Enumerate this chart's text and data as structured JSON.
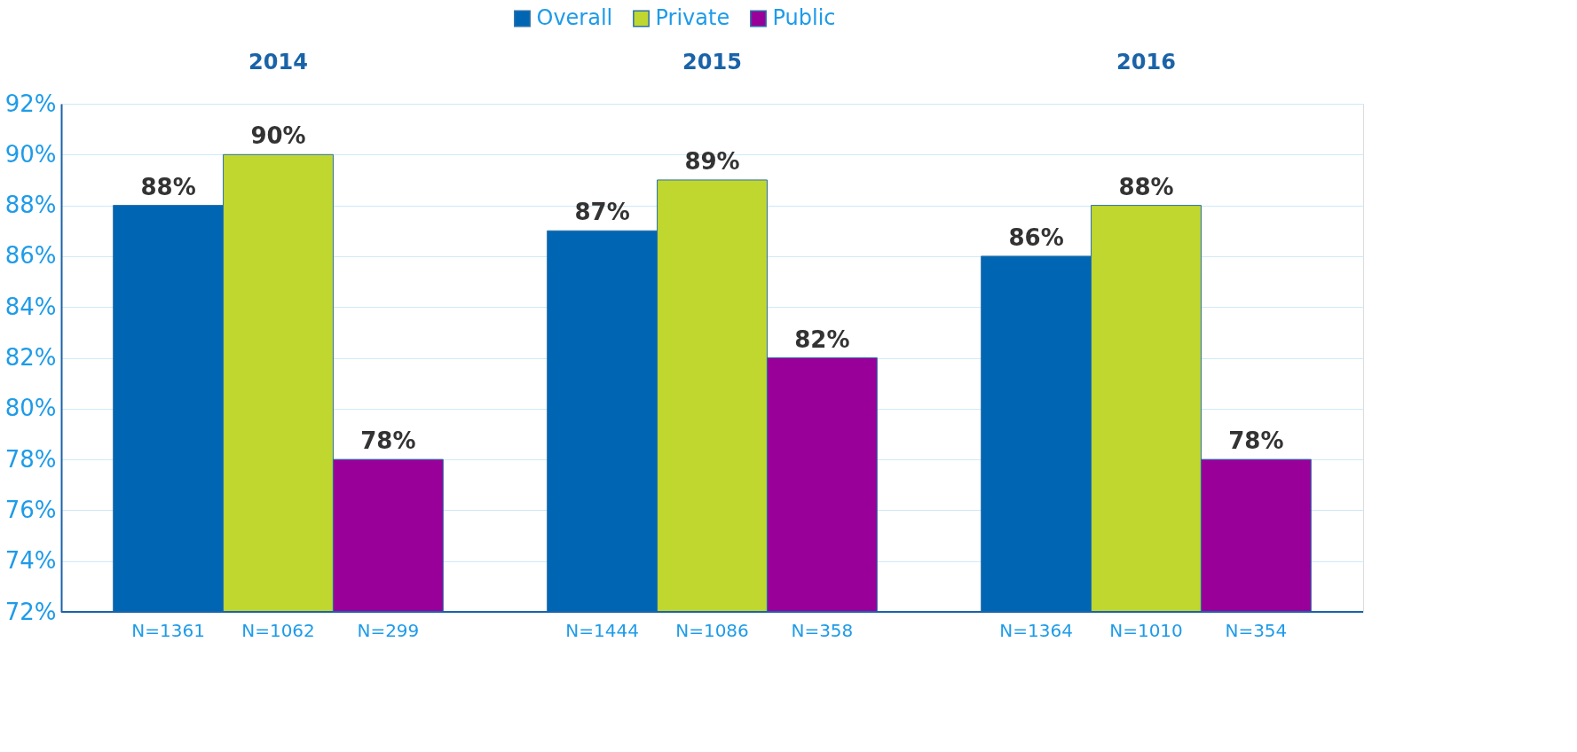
{
  "chart_data": {
    "type": "bar",
    "categories": [
      "2014",
      "2015",
      "2016"
    ],
    "series": [
      {
        "name": "Overall",
        "color": "#0066b3",
        "values": [
          88,
          87,
          86
        ],
        "value_labels": [
          "88%",
          "87%",
          "86%"
        ]
      },
      {
        "name": "Private",
        "color": "#c0d72f",
        "values": [
          90,
          89,
          88
        ],
        "value_labels": [
          "90%",
          "89%",
          "88%"
        ]
      },
      {
        "name": "Public",
        "color": "#990099",
        "values": [
          78,
          82,
          78
        ],
        "value_labels": [
          "78%",
          "82%",
          "78%"
        ]
      }
    ],
    "ylim": [
      72,
      92
    ],
    "yticks": [
      {
        "value": 72,
        "label": "72%"
      },
      {
        "value": 74,
        "label": "74%"
      },
      {
        "value": 76,
        "label": "76%"
      },
      {
        "value": 78,
        "label": "78%"
      },
      {
        "value": 80,
        "label": "80%"
      },
      {
        "value": 82,
        "label": "82%"
      },
      {
        "value": 84,
        "label": "84%"
      },
      {
        "value": 86,
        "label": "86%"
      },
      {
        "value": 88,
        "label": "88%"
      },
      {
        "value": 90,
        "label": "90%"
      },
      {
        "value": 92,
        "label": "92%"
      }
    ],
    "grid": "y",
    "legend": "top",
    "annotations": [
      "N=1361",
      "N=1062",
      "N=299",
      "N=1444",
      "N=1086",
      "N=358",
      "N=1364",
      "N=1010",
      "N=354"
    ]
  }
}
